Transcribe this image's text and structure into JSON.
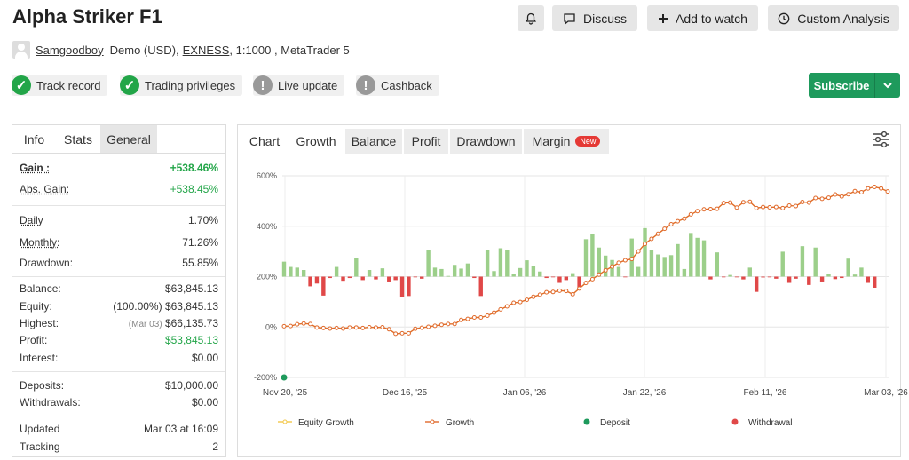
{
  "header": {
    "title": "Alpha Striker F1",
    "buttons": {
      "discuss": "Discuss",
      "watch": "Add to watch",
      "analysis": "Custom Analysis"
    }
  },
  "meta": {
    "user": "Samgoodboy",
    "account_type": "Demo (USD),",
    "broker": "EXNESS",
    "rest": ", 1:1000 , MetaTrader 5"
  },
  "badges": [
    {
      "label": "Track record",
      "status": "ok"
    },
    {
      "label": "Trading privileges",
      "status": "ok"
    },
    {
      "label": "Live update",
      "status": "warn"
    },
    {
      "label": "Cashback",
      "status": "warn"
    }
  ],
  "subscribe": "Subscribe",
  "left_tabs": [
    "Info",
    "Stats",
    "General"
  ],
  "stats": {
    "gain": {
      "label": "Gain :",
      "value": "+538.46%"
    },
    "abs_gain": {
      "label": "Abs. Gain:",
      "value": "+538.45%"
    },
    "daily": {
      "label": "Daily",
      "value": "1.70%"
    },
    "monthly": {
      "label": "Monthly:",
      "value": "71.26%"
    },
    "drawdown": {
      "label": "Drawdown:",
      "value": "55.85%"
    },
    "balance": {
      "label": "Balance:",
      "value": "$63,845.13"
    },
    "equity": {
      "label": "Equity:",
      "note": "(100.00%)",
      "value": "$63,845.13"
    },
    "highest": {
      "label": "Highest:",
      "note": "(Mar 03)",
      "value": "$66,135.73"
    },
    "profit": {
      "label": "Profit:",
      "value": "$53,845.13"
    },
    "interest": {
      "label": "Interest:",
      "value": "$0.00"
    },
    "deposits": {
      "label": "Deposits:",
      "value": "$10,000.00"
    },
    "withdrawals": {
      "label": "Withdrawals:",
      "value": "$0.00"
    },
    "updated": {
      "label": "Updated",
      "value": "Mar 03 at 16:09"
    },
    "tracking": {
      "label": "Tracking",
      "value": "2"
    }
  },
  "chart_tabs": [
    "Chart",
    "Growth",
    "Balance",
    "Profit",
    "Drawdown",
    "Margin"
  ],
  "chart_new_badge": "New",
  "colors": {
    "growth": "#e06a2c",
    "equity": "#f3c84b",
    "deposit": "#1e9a5c",
    "withdrawal": "#e04848",
    "bar_pos": "#9ccf8a",
    "bar_neg": "#e04848"
  },
  "chart_data": {
    "type": "line",
    "y_ticks": [
      "600%",
      "400%",
      "200%",
      "0%",
      "-200%"
    ],
    "ylim": [
      -200,
      600
    ],
    "x_ticks": [
      "Nov 20, '25",
      "Dec 16, '25",
      "Jan 06, '26",
      "Jan 22, '26",
      "Feb 11, '26",
      "Mar 03, '26"
    ],
    "legend": [
      "Equity Growth",
      "Growth",
      "Deposit",
      "Withdrawal"
    ],
    "growth": [
      3,
      4,
      11,
      14,
      12,
      -2,
      -4,
      -6,
      -4,
      -6,
      -2,
      -2,
      -4,
      -1,
      -2,
      -1,
      -9,
      -27,
      -25,
      -25,
      -7,
      -3,
      1,
      5,
      9,
      12,
      12,
      28,
      32,
      38,
      38,
      45,
      57,
      70,
      82,
      96,
      99,
      108,
      120,
      128,
      138,
      139,
      144,
      143,
      130,
      153,
      175,
      190,
      208,
      225,
      240,
      255,
      265,
      270,
      300,
      330,
      350,
      370,
      390,
      408,
      420,
      430,
      447,
      460,
      467,
      468,
      469,
      492,
      494,
      474,
      495,
      497,
      472,
      476,
      475,
      476,
      472,
      482,
      480,
      496,
      494,
      512,
      509,
      513,
      526,
      518,
      527,
      539,
      535,
      550,
      556,
      550,
      538
    ],
    "bars": [
      108,
      70,
      65,
      48,
      -70,
      -50,
      -137,
      -10,
      70,
      -30,
      -10,
      135,
      -25,
      48,
      -20,
      60,
      -35,
      -25,
      -150,
      -140,
      -5,
      -15,
      195,
      65,
      55,
      5,
      85,
      58,
      95,
      -10,
      -140,
      190,
      40,
      205,
      190,
      20,
      62,
      118,
      78,
      37,
      -10,
      -5,
      -45,
      -25,
      25,
      -88,
      270,
      305,
      210,
      152,
      120,
      70,
      -5,
      275,
      70,
      350,
      190,
      160,
      142,
      155,
      235,
      55,
      315,
      280,
      262,
      -20,
      175,
      -5,
      12,
      -5,
      -20,
      65,
      -110,
      -6,
      -5,
      -15,
      180,
      -45,
      -15,
      220,
      -60,
      210,
      -35,
      20,
      -18,
      -10,
      130,
      15,
      65,
      -45,
      -80
    ],
    "deposit": {
      "x_index": 0,
      "value": -200
    }
  }
}
